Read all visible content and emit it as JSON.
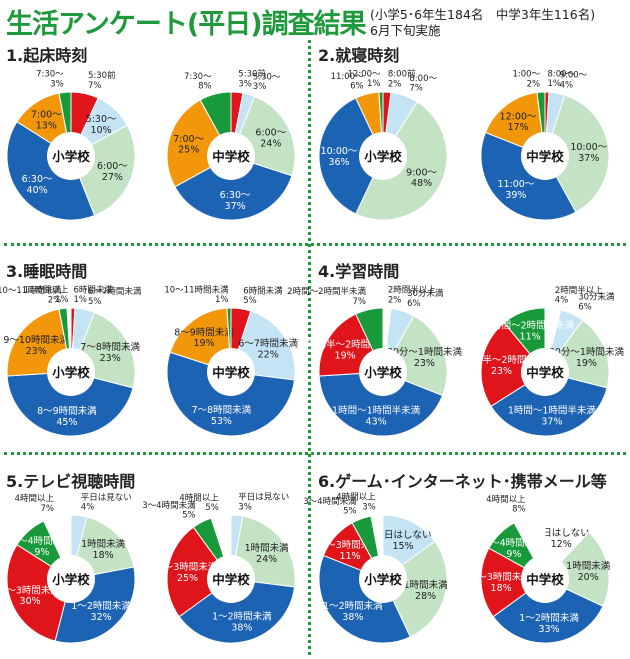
{
  "title": "生活アンケート(平日)調査結果",
  "subtitle_line1": "(小学5･6年生184名　中学3年生116名)",
  "subtitle_line2": "6月下旬実施",
  "colors": {
    "red": "#e0141b",
    "lightblue": "#c4e4f5",
    "lightgreen": "#c4e2c4",
    "blue": "#1d63b3",
    "orange": "#f2970a",
    "green": "#199a3a",
    "white": "#ffffff"
  },
  "chart_data": [
    {
      "type": "pie",
      "title": "1.起床時刻",
      "pies": [
        {
          "center_label": "小学校",
          "slices": [
            {
              "label": "5:30前",
              "value": 7,
              "color": "red"
            },
            {
              "label": "5:30～",
              "value": 10,
              "color": "lightblue"
            },
            {
              "label": "6:00～",
              "value": 27,
              "color": "lightgreen"
            },
            {
              "label": "6:30～",
              "value": 40,
              "color": "blue"
            },
            {
              "label": "7:00～",
              "value": 13,
              "color": "orange"
            },
            {
              "label": "7:30～",
              "value": 3,
              "color": "green"
            }
          ]
        },
        {
          "center_label": "中学校",
          "slices": [
            {
              "label": "5:30前",
              "value": 3,
              "color": "red"
            },
            {
              "label": "5:30～",
              "value": 3,
              "color": "lightblue"
            },
            {
              "label": "6:00～",
              "value": 24,
              "color": "lightgreen"
            },
            {
              "label": "6:30～",
              "value": 37,
              "color": "blue"
            },
            {
              "label": "7:00～",
              "value": 25,
              "color": "orange"
            },
            {
              "label": "7:30～",
              "value": 8,
              "color": "green"
            }
          ]
        }
      ]
    },
    {
      "type": "pie",
      "title": "2.就寝時刻",
      "pies": [
        {
          "center_label": "小学校",
          "slices": [
            {
              "label": "8:00前",
              "value": 2,
              "color": "red"
            },
            {
              "label": "8:00～",
              "value": 7,
              "color": "lightblue"
            },
            {
              "label": "9:00～",
              "value": 48,
              "color": "lightgreen"
            },
            {
              "label": "10:00～",
              "value": 36,
              "color": "blue"
            },
            {
              "label": "11:00～",
              "value": 6,
              "color": "orange"
            },
            {
              "label": "12:00～",
              "value": 1,
              "color": "green"
            }
          ]
        },
        {
          "center_label": "中学校",
          "slices": [
            {
              "label": "8:00～",
              "value": 1,
              "color": "red"
            },
            {
              "label": "9:00～",
              "value": 4,
              "color": "lightblue"
            },
            {
              "label": "10:00～",
              "value": 37,
              "color": "lightgreen"
            },
            {
              "label": "11:00～",
              "value": 39,
              "color": "blue"
            },
            {
              "label": "12:00～",
              "value": 17,
              "color": "orange"
            },
            {
              "label": "1:00～",
              "value": 2,
              "color": "green"
            }
          ]
        }
      ]
    },
    {
      "type": "pie",
      "title": "3.睡眠時間",
      "pies": [
        {
          "center_label": "小学校",
          "slices": [
            {
              "label": "6時間未満",
              "value": 1,
              "color": "red"
            },
            {
              "label": "6～7時間未満",
              "value": 5,
              "color": "lightblue"
            },
            {
              "label": "7～8時間未満",
              "value": 23,
              "color": "lightgreen"
            },
            {
              "label": "8～9時間未満",
              "value": 45,
              "color": "blue"
            },
            {
              "label": "9～10時間未満",
              "value": 23,
              "color": "orange"
            },
            {
              "label": "10～11時間未満",
              "value": 2,
              "color": "green"
            },
            {
              "label": "11時間以上",
              "value": 1,
              "color": "white"
            }
          ]
        },
        {
          "center_label": "中学校",
          "slices": [
            {
              "label": "6時間未満",
              "value": 5,
              "color": "red"
            },
            {
              "label": "6～7時間未満",
              "value": 22,
              "color": "lightblue"
            },
            {
              "label": "7～8時間未満",
              "value": 53,
              "color": "blue"
            },
            {
              "label": "8～9時間未満",
              "value": 19,
              "color": "orange"
            },
            {
              "label": "10～11時間未満",
              "value": 1,
              "color": "green"
            }
          ]
        }
      ]
    },
    {
      "type": "pie",
      "title": "4.学習時間",
      "pies": [
        {
          "center_label": "小学校",
          "slices": [
            {
              "label": "2時間半以上",
              "value": 2,
              "color": "white"
            },
            {
              "label": "30分未満",
              "value": 6,
              "color": "lightblue"
            },
            {
              "label": "30分～1時間未満",
              "value": 23,
              "color": "lightgreen"
            },
            {
              "label": "1時間～1時間半未満",
              "value": 43,
              "color": "blue"
            },
            {
              "label": "1時間半～2時間未満",
              "value": 19,
              "color": "red"
            },
            {
              "label": "2時間～2時間半未満",
              "value": 7,
              "color": "green"
            }
          ]
        },
        {
          "center_label": "中学校",
          "slices": [
            {
              "label": "2時間半以上",
              "value": 4,
              "color": "white"
            },
            {
              "label": "30分未満",
              "value": 6,
              "color": "lightblue"
            },
            {
              "label": "30分～1時間未満",
              "value": 19,
              "color": "lightgreen"
            },
            {
              "label": "1時間～1時間半未満",
              "value": 37,
              "color": "blue"
            },
            {
              "label": "1時間半～2時間未満",
              "value": 23,
              "color": "red"
            },
            {
              "label": "2時間～2時間半未満",
              "value": 11,
              "color": "green"
            }
          ]
        }
      ]
    },
    {
      "type": "pie",
      "title": "5.テレビ視聴時間",
      "pies": [
        {
          "center_label": "小学校",
          "slices": [
            {
              "label": "平日は見ない",
              "value": 4,
              "color": "lightblue"
            },
            {
              "label": "1時間未満",
              "value": 18,
              "color": "lightgreen"
            },
            {
              "label": "1～2時間未満",
              "value": 32,
              "color": "blue"
            },
            {
              "label": "2～3時間未満",
              "value": 30,
              "color": "red"
            },
            {
              "label": "3～4時間未満",
              "value": 9,
              "color": "green"
            },
            {
              "label": "4時間以上",
              "value": 7,
              "color": "white"
            }
          ]
        },
        {
          "center_label": "中学校",
          "slices": [
            {
              "label": "平日は見ない",
              "value": 3,
              "color": "lightblue"
            },
            {
              "label": "1時間未満",
              "value": 24,
              "color": "lightgreen"
            },
            {
              "label": "1～2時間未満",
              "value": 38,
              "color": "blue"
            },
            {
              "label": "2～3時間未満",
              "value": 25,
              "color": "red"
            },
            {
              "label": "3～4時間未満",
              "value": 5,
              "color": "green"
            },
            {
              "label": "4時間以上",
              "value": 5,
              "color": "white"
            }
          ]
        }
      ]
    },
    {
      "type": "pie",
      "title": "6.ゲーム･インターネット･携帯メール等",
      "pies": [
        {
          "center_label": "小学校",
          "slices": [
            {
              "label": "平日はしない",
              "value": 15,
              "color": "lightblue"
            },
            {
              "label": "1時間未満",
              "value": 28,
              "color": "lightgreen"
            },
            {
              "label": "1～2時間未満",
              "value": 38,
              "color": "blue"
            },
            {
              "label": "2～3時間未満",
              "value": 11,
              "color": "red"
            },
            {
              "label": "3～4時間未満",
              "value": 5,
              "color": "green"
            },
            {
              "label": "4時間以上",
              "value": 3,
              "color": "white"
            }
          ]
        },
        {
          "center_label": "中学校",
          "slices": [
            {
              "label": "平日はしない",
              "value": 12,
              "color": "white"
            },
            {
              "label": "1時間未満",
              "value": 20,
              "color": "lightgreen"
            },
            {
              "label": "1～2時間未満",
              "value": 33,
              "color": "blue"
            },
            {
              "label": "2～3時間未満",
              "value": 18,
              "color": "red"
            },
            {
              "label": "3～4時間未満",
              "value": 9,
              "color": "green"
            },
            {
              "label": "4時間以上",
              "value": 8,
              "color": "white"
            }
          ]
        }
      ]
    }
  ]
}
